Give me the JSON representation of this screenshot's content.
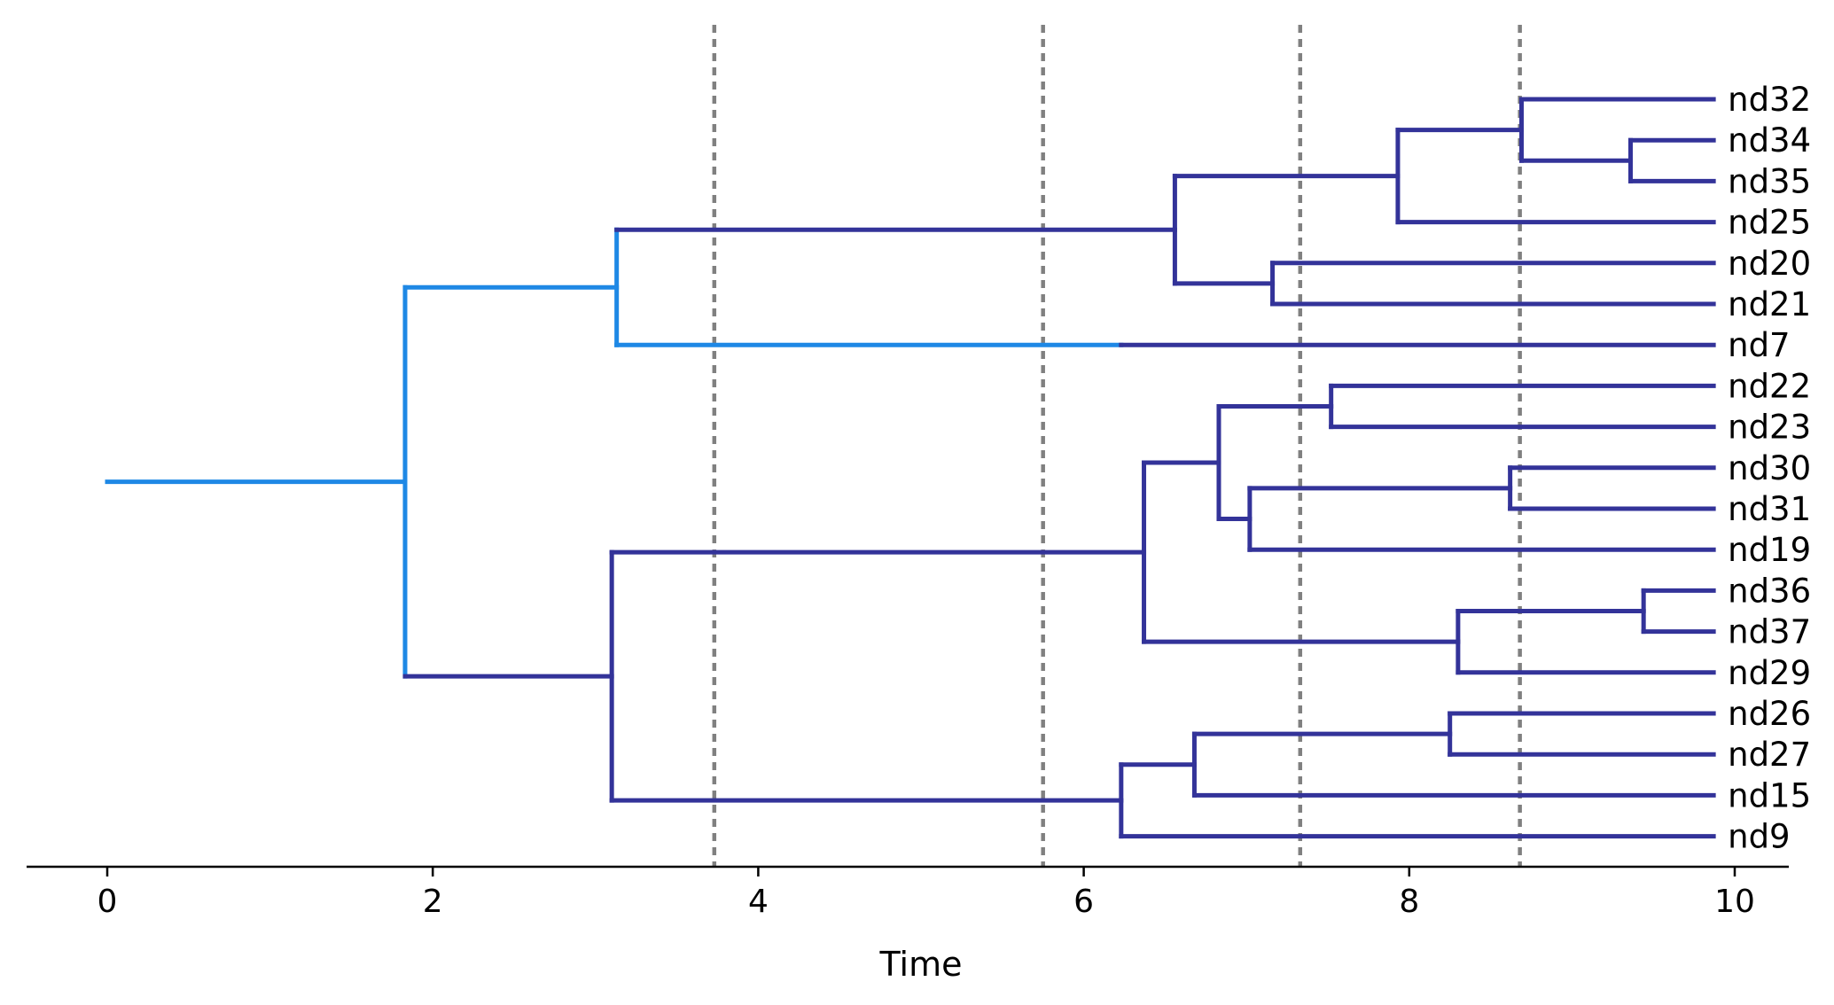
{
  "chart_data": {
    "type": "dendrogram",
    "xlabel": "Time",
    "xlim": [
      -0.5,
      10.4
    ],
    "x_ticks": [
      0,
      2,
      4,
      6,
      8,
      10
    ],
    "x_tick_labels": [
      "0",
      "2",
      "4",
      "6",
      "8",
      "10"
    ],
    "grid": false,
    "legend": "none",
    "colors": {
      "root_lineage": "#1e88e5",
      "descendant": "#333399",
      "reference_line": "#808080",
      "axis": "#000000"
    },
    "reference_lines": [
      3.73,
      5.75,
      7.33,
      8.68
    ],
    "tips": [
      "nd32",
      "nd34",
      "nd35",
      "nd25",
      "nd20",
      "nd21",
      "nd7",
      "nd22",
      "nd23",
      "nd30",
      "nd31",
      "nd19",
      "nd36",
      "nd37",
      "nd29",
      "nd26",
      "nd27",
      "nd15",
      "nd9"
    ],
    "tip_time": 9.87,
    "root_stem_start": 0,
    "tree": {
      "name": "root",
      "time": 1.83,
      "color": "root_lineage",
      "children": [
        {
          "name": "A",
          "time": 3.13,
          "color": "root_lineage",
          "children": [
            {
              "name": "A1",
              "time": 6.56,
              "color": "descendant",
              "children": [
                {
                  "name": "A1a",
                  "time": 7.93,
                  "color": "descendant",
                  "children": [
                    {
                      "name": "A1a1",
                      "time": 8.69,
                      "color": "descendant",
                      "children": [
                        {
                          "name": "nd32"
                        },
                        {
                          "name": "A1a1b",
                          "time": 9.36,
                          "color": "descendant",
                          "children": [
                            {
                              "name": "nd34"
                            },
                            {
                              "name": "nd35"
                            }
                          ]
                        }
                      ]
                    },
                    {
                      "name": "nd25"
                    }
                  ]
                },
                {
                  "name": "A1b",
                  "time": 7.16,
                  "color": "descendant",
                  "children": [
                    {
                      "name": "nd20"
                    },
                    {
                      "name": "nd21"
                    }
                  ]
                }
              ]
            },
            {
              "name": "nd7",
              "color_change_time": 6.23
            }
          ]
        },
        {
          "name": "B",
          "time": 3.1,
          "color": "descendant",
          "children": [
            {
              "name": "B1",
              "time": 6.37,
              "color": "descendant",
              "children": [
                {
                  "name": "B1a",
                  "time": 6.83,
                  "color": "descendant",
                  "children": [
                    {
                      "name": "B1a1",
                      "time": 7.52,
                      "color": "descendant",
                      "children": [
                        {
                          "name": "nd22"
                        },
                        {
                          "name": "nd23"
                        }
                      ]
                    },
                    {
                      "name": "B1a2",
                      "time": 7.02,
                      "color": "descendant",
                      "children": [
                        {
                          "name": "B1a2a",
                          "time": 8.62,
                          "color": "descendant",
                          "children": [
                            {
                              "name": "nd30"
                            },
                            {
                              "name": "nd31"
                            }
                          ]
                        },
                        {
                          "name": "nd19"
                        }
                      ]
                    }
                  ]
                },
                {
                  "name": "B1b",
                  "time": 8.3,
                  "color": "descendant",
                  "children": [
                    {
                      "name": "B1b1",
                      "time": 9.44,
                      "color": "descendant",
                      "children": [
                        {
                          "name": "nd36"
                        },
                        {
                          "name": "nd37"
                        }
                      ]
                    },
                    {
                      "name": "nd29"
                    }
                  ]
                }
              ]
            },
            {
              "name": "B2",
              "time": 6.23,
              "color": "descendant",
              "children": [
                {
                  "name": "B2a",
                  "time": 6.68,
                  "color": "descendant",
                  "children": [
                    {
                      "name": "B2a1",
                      "time": 8.25,
                      "color": "descendant",
                      "children": [
                        {
                          "name": "nd26"
                        },
                        {
                          "name": "nd27"
                        }
                      ]
                    },
                    {
                      "name": "nd15"
                    }
                  ]
                },
                {
                  "name": "nd9"
                }
              ]
            }
          ]
        }
      ]
    }
  }
}
